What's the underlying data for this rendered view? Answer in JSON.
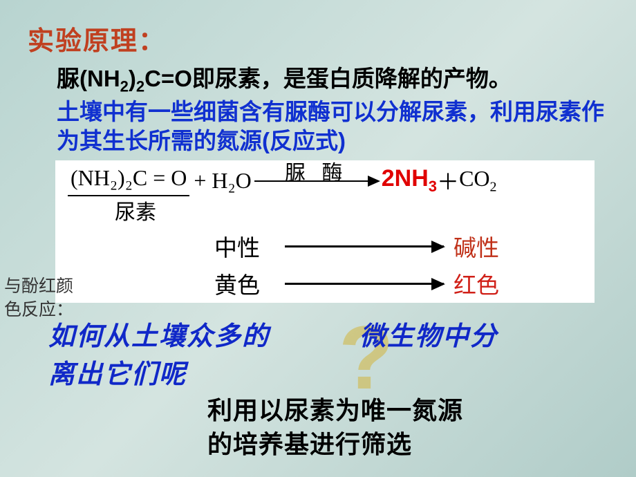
{
  "colors": {
    "title": "#c04020",
    "black": "#000000",
    "blue_text": "#1030d0",
    "red_bold": "#e00000",
    "alkaline": "#c03018",
    "red_color_txt": "#d02018",
    "question_blue": "#1028c8",
    "qmark": "rgba(210,180,60,0.55)",
    "bg_start": "#b8d4d0",
    "bg_end": "#b0ccc8",
    "white": "#ffffff"
  },
  "title": "实验原理：",
  "line1_pre": "脲(NH",
  "line1_sub1": "2",
  "line1_mid1": ")",
  "line1_sub2": "2",
  "line1_mid2": "C=O即尿素，是蛋白质降解的产物。",
  "line2": "土壤中有一些细菌含有脲酶可以分解尿素，利用尿素作为其生长所需的氮源(反应式)",
  "equation": {
    "reactant": "(NH₂)₂C = O",
    "plus_water": " + H₂O",
    "enzyme_label": "脲 酶",
    "product_nh3": "2NH",
    "product_nh3_sub": "3",
    "spacer": "  ＋ ",
    "product_co2": "CO",
    "product_co2_sub": "2",
    "urea_label": "尿素"
  },
  "properties": {
    "row1_left": "中性",
    "row1_right": "碱性",
    "row2_left": "黄色",
    "row2_right": "红色"
  },
  "phenol_label": "与酚红颜\n色反应：",
  "question_mark": "?",
  "question_part1": "如何从土壤众多的",
  "question_part2": "微生物中分",
  "question_part3": "离出它们呢",
  "answer": "利用以尿素为唯一氮源\n的培养基进行筛选",
  "font_sizes": {
    "title": 38,
    "body": 33,
    "equation": 32,
    "sub": 20,
    "phenol": 25,
    "question": 38,
    "answer": 36,
    "qmark": 130
  }
}
